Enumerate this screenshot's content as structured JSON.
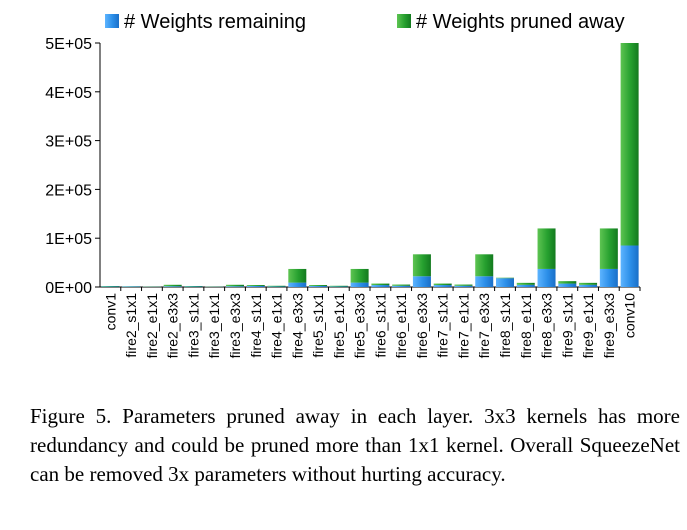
{
  "chart_data": {
    "type": "bar",
    "stacked": true,
    "categories": [
      "conv1",
      "fire2_s1x1",
      "fire2_e1x1",
      "fire2_e3x3",
      "fire3_s1x1",
      "fire3_e1x1",
      "fire3_e3x3",
      "fire4_s1x1",
      "fire4_e1x1",
      "fire4_e3x3",
      "fire5_s1x1",
      "fire5_e1x1",
      "fire5_e3x3",
      "fire6_s1x1",
      "fire6_e1x1",
      "fire6_e3x3",
      "fire7_s1x1",
      "fire7_e1x1",
      "fire7_e3x3",
      "fire8_s1x1",
      "fire8_e1x1",
      "fire8_e3x3",
      "fire9_s1x1",
      "fire9_e1x1",
      "fire9_e3x3",
      "conv10"
    ],
    "series": [
      {
        "name": "# Weights remaining",
        "color": "#2b8ee8",
        "values": [
          1000,
          1000,
          500,
          1500,
          1000,
          500,
          1500,
          2000,
          1000,
          9000,
          2000,
          1000,
          9000,
          4000,
          2500,
          22000,
          4000,
          2500,
          22000,
          18000,
          4500,
          37000,
          7000,
          4500,
          37000,
          85000
        ]
      },
      {
        "name": "# Weights pruned away",
        "color": "#1f9a2c",
        "values": [
          1000,
          500,
          500,
          3000,
          1000,
          500,
          3000,
          2000,
          1500,
          28000,
          2000,
          1500,
          28000,
          3000,
          2500,
          45000,
          3000,
          2500,
          45000,
          1000,
          4000,
          83000,
          5000,
          4000,
          83000,
          415000
        ]
      }
    ],
    "yticks": [
      "0E+00",
      "1E+05",
      "2E+05",
      "3E+05",
      "4E+05",
      "5E+05"
    ],
    "ylim": [
      0,
      500000
    ],
    "grid": false,
    "legend": "top"
  },
  "caption": "Figure 5.  Parameters pruned away in each layer. 3x3 kernels has more redundancy and could be pruned more than 1x1 kernel. Overall SqueezeNet can be removed 3x parameters without hurting accuracy."
}
